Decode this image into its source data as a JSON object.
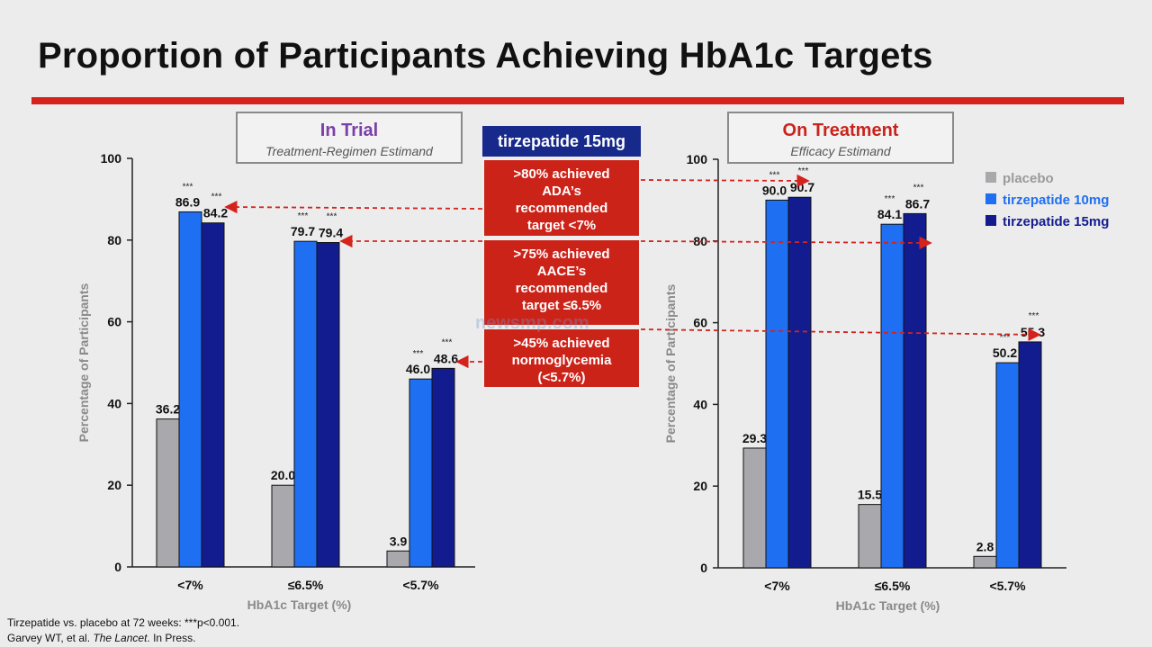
{
  "slide": {
    "title": "Proportion of Participants Achieving HbA1c Targets",
    "center_header": "tirzepatide 15mg",
    "callouts": [
      {
        "lines": [
          ">80% achieved",
          "ADA’s",
          "recommended",
          "target <7%"
        ]
      },
      {
        "lines": [
          ">75% achieved",
          "AACE’s",
          "recommended",
          "target ≤6.5%"
        ]
      },
      {
        "lines": [
          ">45% achieved",
          "normoglycemia",
          "(<5.7%)"
        ]
      }
    ],
    "footnote1": "Tirzepatide vs. placebo at 72 weeks: ***p<0.001.",
    "footnote2_pre": "Garvey WT, et al. ",
    "footnote2_journal": "The Lancet",
    "footnote2_post": ". In Press.",
    "watermark": "newsmp.com"
  },
  "colors": {
    "placebo": "#a9a9ad",
    "tirzepatide_10mg": "#1f6ff2",
    "tirzepatide_15mg": "#131c8f",
    "arrow": "#d4231c"
  },
  "chart_data": [
    {
      "type": "bar",
      "panel_title": "In Trial",
      "panel_subtitle": "Treatment-Regimen Estimand",
      "categories": [
        "<7%",
        "≤6.5%",
        "<5.7%"
      ],
      "xlabel": "HbA1c Target (%)",
      "ylabel": "Percentage of Participants",
      "ylim": [
        0,
        100
      ],
      "yticks": [
        0,
        20,
        40,
        60,
        80,
        100
      ],
      "series": [
        {
          "name": "placebo",
          "values": [
            36.2,
            20.0,
            3.9
          ],
          "significance": [
            "",
            "",
            ""
          ]
        },
        {
          "name": "tirzepatide 10mg",
          "values": [
            86.9,
            79.7,
            46.0
          ],
          "significance": [
            "***",
            "***",
            "***"
          ]
        },
        {
          "name": "tirzepatide 15mg",
          "values": [
            84.2,
            79.4,
            48.6
          ],
          "significance": [
            "***",
            "***",
            "***"
          ]
        }
      ],
      "legend": "none"
    },
    {
      "type": "bar",
      "panel_title": "On Treatment",
      "panel_subtitle": "Efficacy Estimand",
      "categories": [
        "<7%",
        "≤6.5%",
        "<5.7%"
      ],
      "xlabel": "HbA1c Target (%)",
      "ylabel": "Percentage of Participants",
      "ylim": [
        0,
        100
      ],
      "yticks": [
        0,
        20,
        40,
        60,
        80,
        100
      ],
      "series": [
        {
          "name": "placebo",
          "values": [
            29.3,
            15.5,
            2.8
          ],
          "significance": [
            "",
            "",
            ""
          ]
        },
        {
          "name": "tirzepatide 10mg",
          "values": [
            90.0,
            84.1,
            50.2
          ],
          "significance": [
            "***",
            "***",
            "***"
          ]
        },
        {
          "name": "tirzepatide 15mg",
          "values": [
            90.7,
            86.7,
            55.3
          ],
          "significance": [
            "***",
            "***",
            "***"
          ]
        }
      ],
      "legend": "top-right"
    }
  ]
}
